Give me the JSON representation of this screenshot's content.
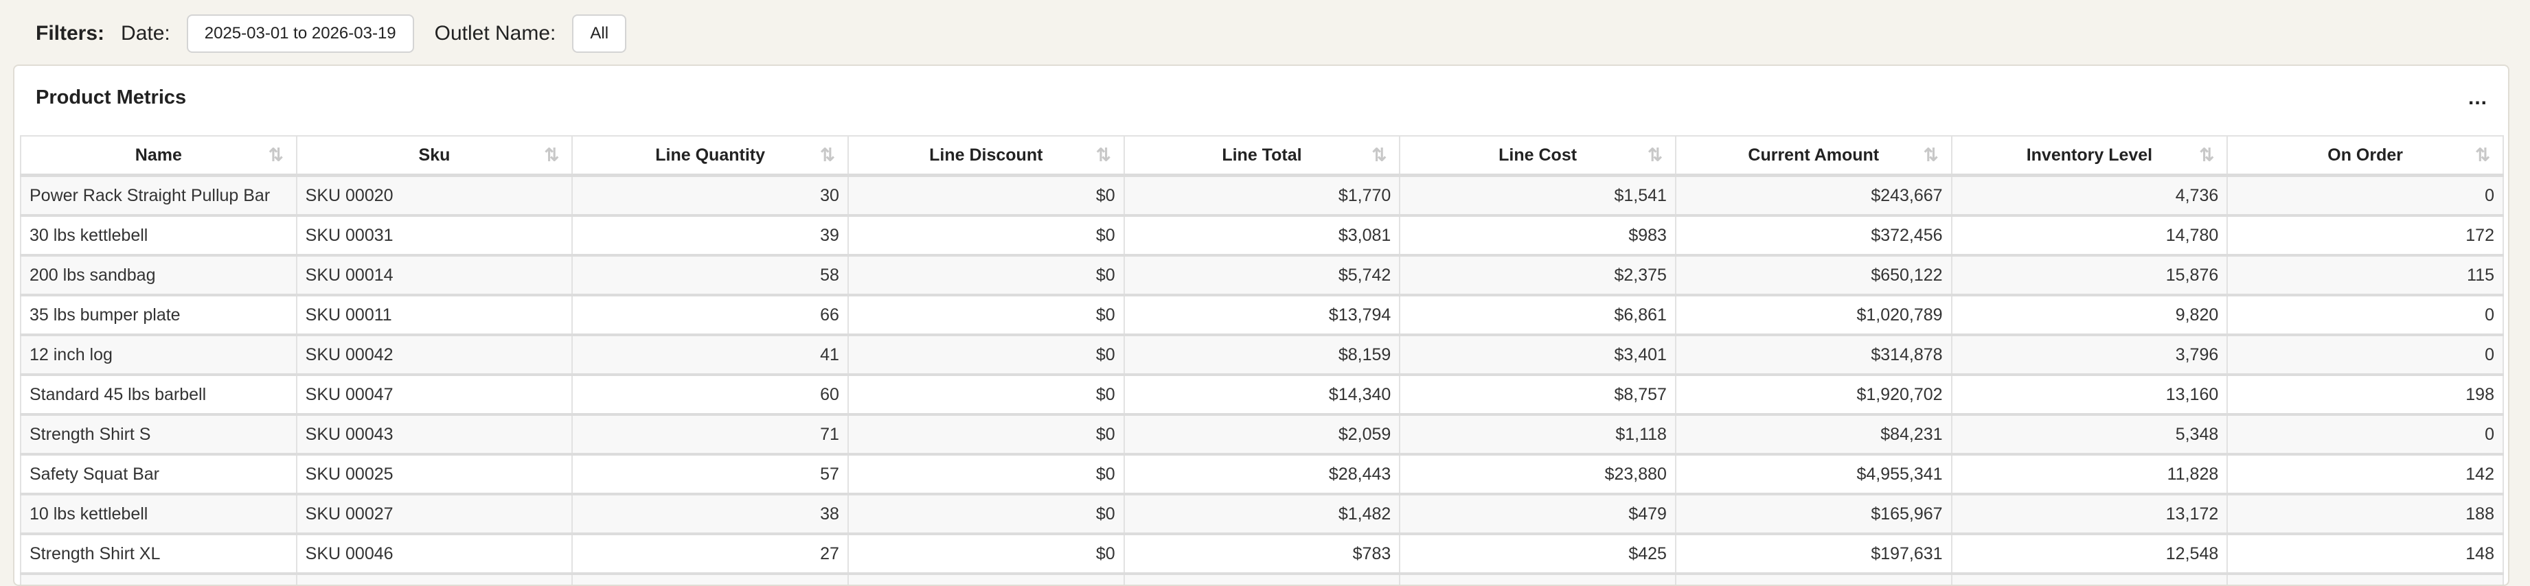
{
  "filters": {
    "label": "Filters:",
    "date_label": "Date:",
    "date_value": "2025-03-01 to 2026-03-19",
    "outlet_label": "Outlet Name:",
    "outlet_value": "All"
  },
  "card": {
    "title": "Product Metrics",
    "menu": "..."
  },
  "table": {
    "columns": [
      "Name",
      "Sku",
      "Line Quantity",
      "Line Discount",
      "Line Total",
      "Line Cost",
      "Current Amount",
      "Inventory Level",
      "On Order"
    ],
    "rows": [
      [
        "Power Rack Straight Pullup Bar",
        "SKU 00020",
        "30",
        "$0",
        "$1,770",
        "$1,541",
        "$243,667",
        "4,736",
        "0"
      ],
      [
        "30 lbs kettlebell",
        "SKU 00031",
        "39",
        "$0",
        "$3,081",
        "$983",
        "$372,456",
        "14,780",
        "172"
      ],
      [
        "200 lbs sandbag",
        "SKU 00014",
        "58",
        "$0",
        "$5,742",
        "$2,375",
        "$650,122",
        "15,876",
        "115"
      ],
      [
        "35 lbs bumper plate",
        "SKU 00011",
        "66",
        "$0",
        "$13,794",
        "$6,861",
        "$1,020,789",
        "9,820",
        "0"
      ],
      [
        "12 inch log",
        "SKU 00042",
        "41",
        "$0",
        "$8,159",
        "$3,401",
        "$314,878",
        "3,796",
        "0"
      ],
      [
        "Standard 45 lbs barbell",
        "SKU 00047",
        "60",
        "$0",
        "$14,340",
        "$8,757",
        "$1,920,702",
        "13,160",
        "198"
      ],
      [
        "Strength Shirt S",
        "SKU 00043",
        "71",
        "$0",
        "$2,059",
        "$1,118",
        "$84,231",
        "5,348",
        "0"
      ],
      [
        "Safety Squat Bar",
        "SKU 00025",
        "57",
        "$0",
        "$28,443",
        "$23,880",
        "$4,955,341",
        "11,828",
        "142"
      ],
      [
        "10 lbs kettlebell",
        "SKU 00027",
        "38",
        "$0",
        "$1,482",
        "$479",
        "$165,967",
        "13,172",
        "188"
      ],
      [
        "Strength Shirt XL",
        "SKU 00046",
        "27",
        "$0",
        "$783",
        "$425",
        "$197,631",
        "12,548",
        "148"
      ]
    ]
  }
}
